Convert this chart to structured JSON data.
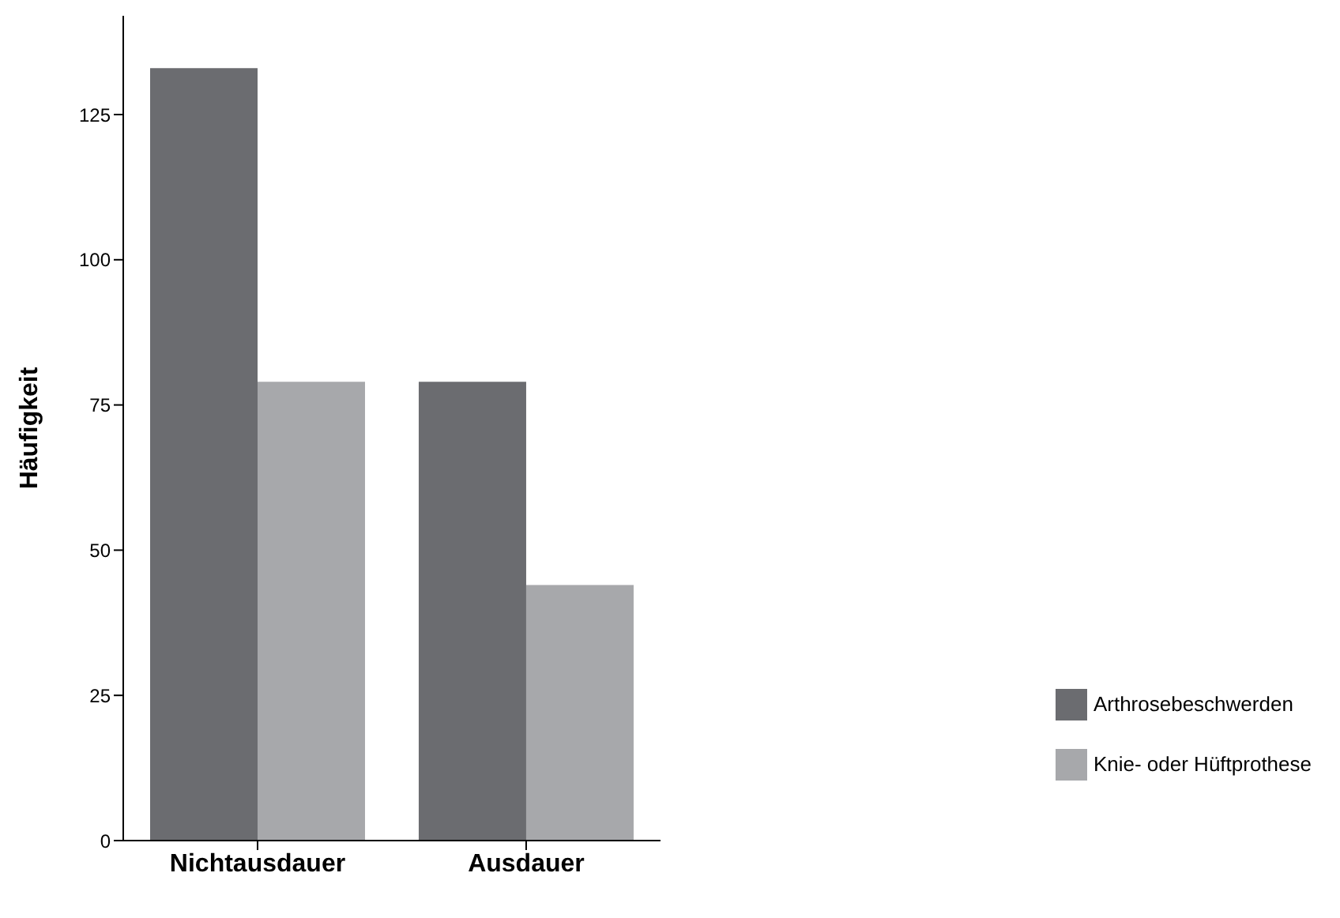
{
  "chart_data": {
    "type": "bar",
    "ylabel": "Häufigkeit",
    "categories": [
      "Nichtausdauer",
      "Ausdauer"
    ],
    "series": [
      {
        "name": "Arthrosebeschwerden",
        "color": "#6b6c70",
        "values": [
          133,
          79
        ]
      },
      {
        "name": "Knie- oder Hüftprothese",
        "color": "#a7a8ab",
        "values": [
          79,
          44
        ]
      }
    ],
    "ylim": [
      0,
      142
    ],
    "yticks": [
      0,
      25,
      50,
      75,
      100,
      125
    ],
    "grid": false,
    "legend": "right"
  }
}
